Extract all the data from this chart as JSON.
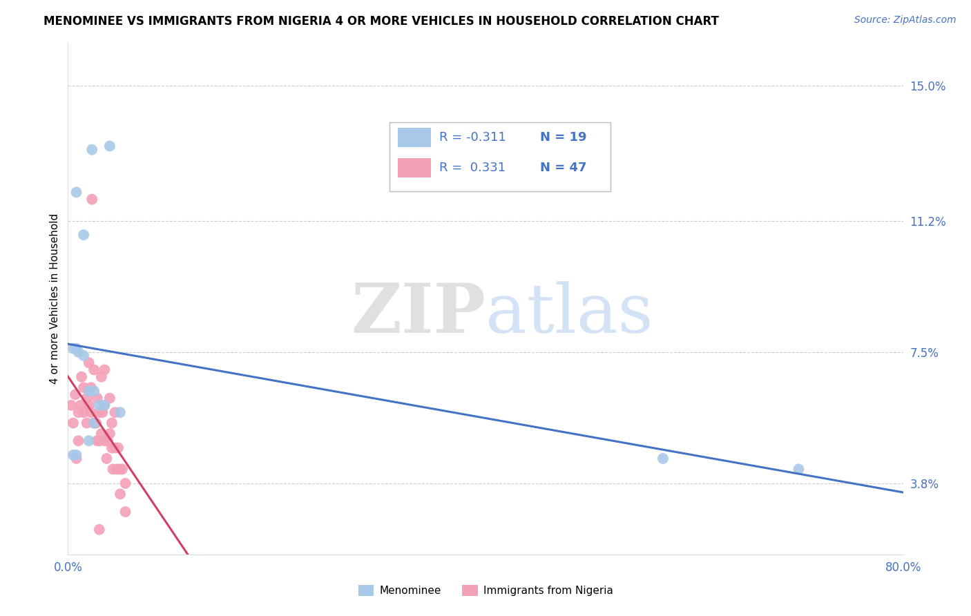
{
  "title": "MENOMINEE VS IMMIGRANTS FROM NIGERIA 4 OR MORE VEHICLES IN HOUSEHOLD CORRELATION CHART",
  "source_text": "Source: ZipAtlas.com",
  "ylabel": "4 or more Vehicles in Household",
  "xlim": [
    0.0,
    0.8
  ],
  "ylim": [
    0.018,
    0.162
  ],
  "yticks": [
    0.038,
    0.075,
    0.112,
    0.15
  ],
  "ytick_labels": [
    "3.8%",
    "7.5%",
    "11.2%",
    "15.0%"
  ],
  "xticks": [
    0.0,
    0.1,
    0.2,
    0.3,
    0.4,
    0.5,
    0.6,
    0.7,
    0.8
  ],
  "xtick_labels": [
    "0.0%",
    "",
    "",
    "",
    "",
    "",
    "",
    "",
    "80.0%"
  ],
  "watermark_zip": "ZIP",
  "watermark_atlas": "atlas",
  "blue_color": "#a8c8e8",
  "pink_color": "#f4a0b8",
  "blue_line_color": "#4472c4",
  "pink_line_color": "#d04060",
  "dash_line_color": "#f4a0b8",
  "legend_blue_R": "-0.311",
  "legend_blue_N": "19",
  "legend_pink_R": "0.331",
  "legend_pink_N": "47",
  "legend_label_blue": "Menominee",
  "legend_label_pink": "Immigrants from Nigeria",
  "menominee_x": [
    0.023,
    0.04,
    0.008,
    0.015,
    0.005,
    0.008,
    0.01,
    0.015,
    0.02,
    0.025,
    0.03,
    0.035,
    0.05,
    0.025,
    0.02,
    0.005,
    0.008,
    0.57,
    0.7
  ],
  "menominee_y": [
    0.132,
    0.133,
    0.12,
    0.108,
    0.076,
    0.076,
    0.075,
    0.074,
    0.064,
    0.064,
    0.06,
    0.06,
    0.058,
    0.055,
    0.05,
    0.046,
    0.046,
    0.045,
    0.042
  ],
  "nigeria_x": [
    0.003,
    0.005,
    0.007,
    0.008,
    0.01,
    0.01,
    0.012,
    0.013,
    0.015,
    0.015,
    0.018,
    0.018,
    0.02,
    0.02,
    0.022,
    0.022,
    0.023,
    0.025,
    0.025,
    0.027,
    0.028,
    0.028,
    0.03,
    0.03,
    0.032,
    0.032,
    0.033,
    0.035,
    0.035,
    0.035,
    0.037,
    0.038,
    0.04,
    0.04,
    0.042,
    0.042,
    0.043,
    0.045,
    0.045,
    0.047,
    0.048,
    0.05,
    0.05,
    0.052,
    0.055,
    0.055,
    0.03
  ],
  "nigeria_y": [
    0.06,
    0.055,
    0.063,
    0.045,
    0.05,
    0.058,
    0.06,
    0.068,
    0.058,
    0.065,
    0.062,
    0.055,
    0.06,
    0.072,
    0.065,
    0.058,
    0.118,
    0.055,
    0.07,
    0.055,
    0.062,
    0.05,
    0.058,
    0.05,
    0.068,
    0.052,
    0.058,
    0.05,
    0.06,
    0.07,
    0.045,
    0.05,
    0.062,
    0.052,
    0.048,
    0.055,
    0.042,
    0.048,
    0.058,
    0.042,
    0.048,
    0.035,
    0.042,
    0.042,
    0.038,
    0.03,
    0.025
  ],
  "title_fontsize": 12,
  "axis_label_fontsize": 11,
  "tick_fontsize": 12,
  "source_fontsize": 10,
  "legend_fontsize": 13
}
